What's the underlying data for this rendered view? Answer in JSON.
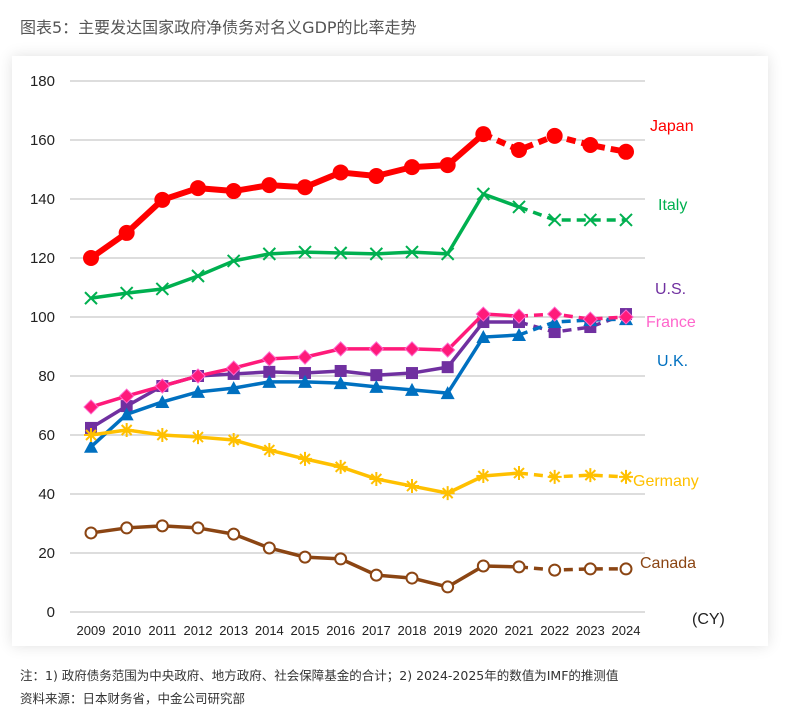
{
  "title": "图表5：主要发达国家政府净债务对名义GDP的比率走势",
  "notes": {
    "note": "注：1) 政府债务范围为中央政府、地方政府、社会保障基金的合计；2) 2024-2025年的数值为IMF的推测值",
    "source": "资料来源：日本财务省，中金公司研究部"
  },
  "chart_data": {
    "type": "line",
    "title": "",
    "xlabel": "(CY)",
    "ylabel": "",
    "ylim": [
      0,
      180
    ],
    "yticks": [
      "0",
      "20",
      "40",
      "60",
      "80",
      "100",
      "120",
      "140",
      "160",
      "180"
    ],
    "grid": true,
    "categories": [
      "2009",
      "2010",
      "2011",
      "2012",
      "2013",
      "2014",
      "2015",
      "2016",
      "2017",
      "2018",
      "2019",
      "2020",
      "2021",
      "2022",
      "2023",
      "2024"
    ],
    "series": [
      {
        "name": "Japan",
        "color": "#ff0000",
        "label_color": "#ff0000",
        "marker": "circle",
        "dashed_from": "2021",
        "values": [
          120,
          128.5,
          139.7,
          143.7,
          142.7,
          144.7,
          144,
          149,
          147.8,
          150.8,
          151.5,
          162,
          156.6,
          161.4,
          158.3,
          156
        ]
      },
      {
        "name": "Italy",
        "color": "#00b050",
        "label_color": "#00b050",
        "marker": "x",
        "dashed_from": "2022",
        "values": [
          106.4,
          108.1,
          109.5,
          113.9,
          119,
          121.4,
          122,
          121.7,
          121.4,
          122,
          121.4,
          141.7,
          137.3,
          132.9,
          132.9,
          132.9
        ]
      },
      {
        "name": "U.S.",
        "color": "#7030a0",
        "label_color": "#7030a0",
        "marker": "square",
        "dashed_from": "2022",
        "values": [
          62.4,
          69.8,
          76.6,
          80,
          80.7,
          81.4,
          81,
          81.7,
          80.3,
          81,
          83,
          98.3,
          98.3,
          94.9,
          96.6,
          101
        ]
      },
      {
        "name": "U.K.",
        "color": "#0070c0",
        "label_color": "#0070c0",
        "marker": "triangle",
        "dashed_from": "2022",
        "values": [
          56,
          67,
          71.2,
          74.6,
          75.9,
          78,
          78,
          77.6,
          76.3,
          75.3,
          74.2,
          93.2,
          93.9,
          98.3,
          99,
          99.3
        ]
      },
      {
        "name": "France",
        "color": "#ff1a7a",
        "label_color": "#ff66cc",
        "marker": "diamond",
        "dashed_from": "2022",
        "values": [
          69.5,
          73.2,
          76.6,
          80,
          82.7,
          85.8,
          86.4,
          89.2,
          89.2,
          89.2,
          88.8,
          101,
          100.3,
          101,
          99.3,
          100
        ]
      },
      {
        "name": "Germany",
        "color": "#ffc000",
        "label_color": "#ffc000",
        "marker": "asterisk",
        "dashed_from": "2022",
        "values": [
          60,
          61.7,
          60,
          59.3,
          58.3,
          54.9,
          51.9,
          49.2,
          45.1,
          42.7,
          40.3,
          46.1,
          47.1,
          45.8,
          46.4,
          45.8
        ]
      },
      {
        "name": "Canada",
        "color": "#8b4513",
        "label_color": "#8b4513",
        "marker": "open-circle",
        "dashed_from": "2022",
        "values": [
          26.8,
          28.5,
          29.2,
          28.5,
          26.4,
          21.7,
          18.6,
          18,
          12.5,
          11.5,
          8.5,
          15.6,
          15.3,
          14.2,
          14.6,
          14.6
        ]
      }
    ]
  }
}
